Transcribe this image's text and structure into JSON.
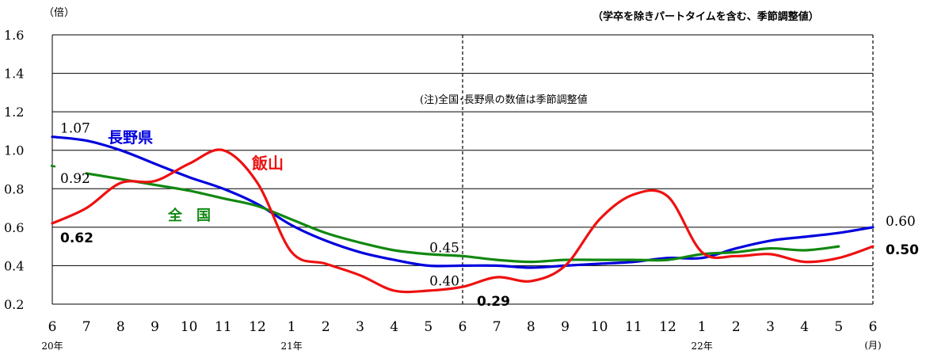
{
  "chart_data": {
    "type": "line",
    "unit_label": "（倍）",
    "subtitle": "（学卒を除きパートタイムを含む、季節調整値）",
    "note": "(注)全国･長野県の数値は季節調整値",
    "ylim": [
      0.2,
      1.6
    ],
    "y_ticks": [
      "0.2",
      "0.4",
      "0.6",
      "0.8",
      "1.0",
      "1.2",
      "1.4",
      "1.6"
    ],
    "y_tick_values": [
      0.2,
      0.4,
      0.6,
      0.8,
      1.0,
      1.2,
      1.4,
      1.6
    ],
    "months": [
      "6",
      "7",
      "8",
      "9",
      "10",
      "11",
      "12",
      "1",
      "2",
      "3",
      "4",
      "5",
      "6",
      "7",
      "8",
      "9",
      "10",
      "11",
      "12",
      "1",
      "2",
      "3",
      "4",
      "5",
      "6"
    ],
    "year_labels": [
      {
        "index": 0,
        "text": "20年"
      },
      {
        "index": 7,
        "text": "21年"
      },
      {
        "index": 19,
        "text": "22年"
      }
    ],
    "x_unit": "(月)",
    "grid": true,
    "series": [
      {
        "name": "長野県",
        "color": "#0000dd",
        "values": [
          1.07,
          1.05,
          1.0,
          0.93,
          0.86,
          0.8,
          0.72,
          0.61,
          0.53,
          0.47,
          0.43,
          0.4,
          0.4,
          0.4,
          0.39,
          0.4,
          0.41,
          0.42,
          0.44,
          0.44,
          0.49,
          0.53,
          0.55,
          0.57,
          0.6
        ]
      },
      {
        "name": "全　国",
        "color": "#118811",
        "values": [
          null,
          0.88,
          0.85,
          0.82,
          0.79,
          0.75,
          0.71,
          0.64,
          0.57,
          0.52,
          0.48,
          0.46,
          0.45,
          0.43,
          0.42,
          0.43,
          0.43,
          0.43,
          0.43,
          0.46,
          0.47,
          0.49,
          0.48,
          0.5,
          null
        ]
      },
      {
        "name": "飯山",
        "color": "#ee1111",
        "values": [
          0.62,
          0.7,
          0.83,
          0.84,
          0.93,
          1.0,
          0.83,
          0.47,
          0.41,
          0.35,
          0.27,
          0.27,
          0.29,
          0.34,
          0.32,
          0.4,
          0.64,
          0.77,
          0.76,
          0.47,
          0.45,
          0.46,
          0.42,
          0.44,
          0.5
        ]
      }
    ],
    "value_labels": [
      {
        "text": "1.07",
        "index": 0,
        "value": 1.07
      },
      {
        "text": "0.92",
        "index": 0,
        "value": 0.92
      },
      {
        "text": "0.62",
        "index": 0,
        "value": 0.62,
        "bold": true
      },
      {
        "text": "0.45",
        "index": 12,
        "value": 0.45
      },
      {
        "text": "0.40",
        "index": 12,
        "value": 0.4
      },
      {
        "text": "0.29",
        "index": 12,
        "value": 0.29,
        "bold": true
      },
      {
        "text": "0.60",
        "index": 24,
        "value": 0.6
      },
      {
        "text": "0.50",
        "index": 24,
        "value": 0.5,
        "bold": true
      }
    ]
  }
}
